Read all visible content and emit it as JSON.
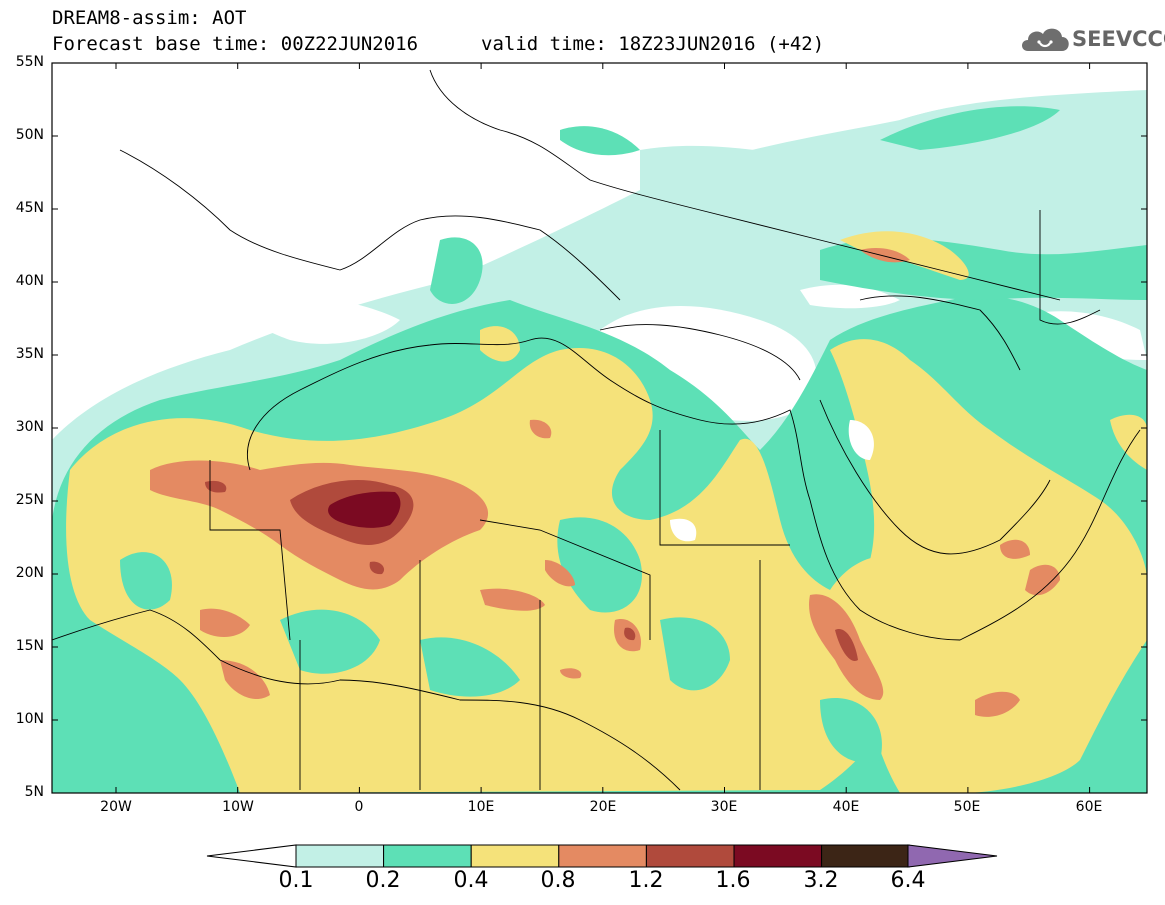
{
  "header": {
    "line1": "DREAM8-assim: AOT",
    "line2": "Forecast base time: 00Z22JUN2016",
    "line3": "valid time: 18Z23JUN2016 (+42)"
  },
  "logo": {
    "text": "SEEVCCC",
    "icon": "cloud-icon"
  },
  "lat_labels": [
    "55N",
    "50N",
    "45N",
    "40N",
    "35N",
    "30N",
    "25N",
    "20N",
    "15N",
    "10N",
    "5N"
  ],
  "lon_labels": [
    "20W",
    "10W",
    "0",
    "10E",
    "20E",
    "30E",
    "40E",
    "50E",
    "60E"
  ],
  "colorbar": {
    "labels": [
      "0.1",
      "0.2",
      "0.4",
      "0.8",
      "1.2",
      "1.6",
      "3.2",
      "6.4"
    ],
    "colors": [
      "#ffffff",
      "#c2f0e6",
      "#5de0b6",
      "#f5e27a",
      "#e48a62",
      "#b04a3c",
      "#7b0a22",
      "#3c2516",
      "#9068b0"
    ]
  }
}
